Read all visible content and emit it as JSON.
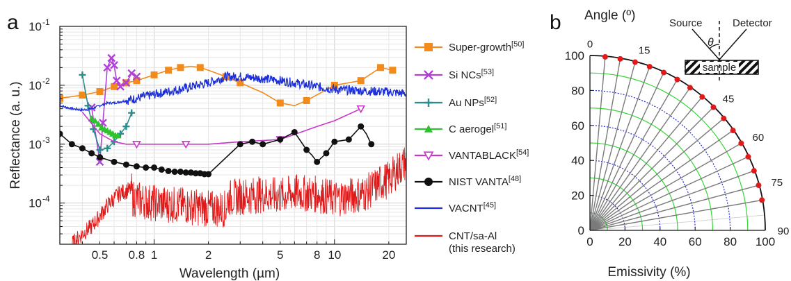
{
  "panels": {
    "a": "a",
    "b": "b"
  },
  "chart_data": [
    {
      "type": "line",
      "panel": "a",
      "xlabel": "Wavelength (µm)",
      "ylabel": "Reflectance (a. u.)",
      "xscale": "log",
      "yscale": "log",
      "xlim": [
        0.3,
        25
      ],
      "ylim": [
        2e-05,
        0.1
      ],
      "grid": true,
      "legend_position": "right",
      "x_ticks": [
        {
          "value": 0.5,
          "label": "0.5"
        },
        {
          "value": 0.8,
          "label": "0.8"
        },
        {
          "value": 1,
          "label": "1"
        },
        {
          "value": 2,
          "label": "2"
        },
        {
          "value": 5,
          "label": "5"
        },
        {
          "value": 8,
          "label": "8"
        },
        {
          "value": 10,
          "label": "10"
        },
        {
          "value": 20,
          "label": "20"
        }
      ],
      "y_ticks": [
        {
          "value": 0.1,
          "base": "10",
          "exp": "-1"
        },
        {
          "value": 0.01,
          "base": "10",
          "exp": "-2"
        },
        {
          "value": 0.001,
          "base": "10",
          "exp": "-3"
        },
        {
          "value": 0.0001,
          "base": "10",
          "exp": "-4"
        }
      ],
      "series": [
        {
          "name": "Super-growth",
          "ref": "[50]",
          "color": "#f28a1c",
          "marker": "square",
          "x": [
            0.3,
            0.4,
            0.5,
            0.6,
            0.7,
            0.8,
            1.0,
            1.2,
            1.4,
            1.6,
            1.8,
            2.0,
            2.5,
            3.0,
            4.0,
            5.0,
            6.0,
            7.0,
            10.0,
            14.0,
            18.0,
            21.0
          ],
          "y": [
            0.006,
            0.0068,
            0.0078,
            0.0095,
            0.011,
            0.012,
            0.015,
            0.018,
            0.02,
            0.021,
            0.02,
            0.018,
            0.014,
            0.011,
            0.0075,
            0.005,
            0.0045,
            0.0055,
            0.01,
            0.012,
            0.02,
            0.018
          ],
          "markers_at": [
            0.3,
            0.4,
            0.5,
            0.6,
            0.7,
            0.8,
            1.0,
            1.2,
            1.4,
            1.8,
            2.5,
            3.0,
            5.0,
            7.0,
            10.0,
            14.0,
            18.0,
            21.0
          ]
        },
        {
          "name": "Si NCs",
          "ref": "[53]",
          "color": "#b040d8",
          "marker": "x",
          "x": [
            0.45,
            0.5,
            0.52,
            0.55,
            0.58,
            0.6,
            0.62,
            0.65,
            0.7,
            0.75,
            0.8
          ],
          "y": [
            0.0042,
            0.0005,
            0.0023,
            0.02,
            0.029,
            0.022,
            0.012,
            0.0095,
            0.011,
            0.016,
            0.014
          ],
          "markers_at": [
            0.45,
            0.5,
            0.52,
            0.55,
            0.58,
            0.6,
            0.62,
            0.65,
            0.7,
            0.75,
            0.8
          ]
        },
        {
          "name": "Au NPs",
          "ref": "[52]",
          "color": "#2a8d8d",
          "marker": "plus",
          "x": [
            0.4,
            0.43,
            0.46,
            0.5,
            0.55,
            0.6,
            0.65,
            0.7,
            0.75
          ],
          "y": [
            0.015,
            0.0045,
            0.0018,
            0.0008,
            0.00085,
            0.0011,
            0.0015,
            0.002,
            0.0034
          ],
          "markers_at": [
            0.4,
            0.43,
            0.46,
            0.5,
            0.55,
            0.6,
            0.65,
            0.7,
            0.75
          ]
        },
        {
          "name": "C aerogel",
          "ref": "[51]",
          "color": "#2fc22f",
          "marker": "triangle",
          "x": [
            0.45,
            0.47,
            0.49,
            0.51,
            0.53,
            0.55,
            0.57,
            0.59,
            0.61,
            0.63
          ],
          "y": [
            0.0027,
            0.0025,
            0.0022,
            0.0019,
            0.0018,
            0.0017,
            0.0016,
            0.0015,
            0.0014,
            0.0014
          ],
          "markers_at": [
            0.45,
            0.47,
            0.49,
            0.51,
            0.53,
            0.55,
            0.57,
            0.59,
            0.61,
            0.63
          ]
        },
        {
          "name": "VANTABLACK",
          "ref": "[54]",
          "color": "#c838c8",
          "marker": "triangle-down",
          "x": [
            0.4,
            0.5,
            0.6,
            0.7,
            0.8,
            1.5,
            2.0,
            3.0,
            5.0,
            8.0,
            10.0,
            14.0
          ],
          "y": [
            0.0035,
            0.0015,
            0.0011,
            0.001,
            0.001,
            0.001,
            0.001,
            0.0011,
            0.0012,
            0.002,
            0.0025,
            0.004
          ],
          "markers_at": [
            0.8,
            1.5,
            5.0,
            14.0
          ]
        },
        {
          "name": "NIST VANTA",
          "ref": "[48]",
          "color": "#111111",
          "marker": "circle",
          "x": [
            0.3,
            0.35,
            0.4,
            0.45,
            0.5,
            0.6,
            0.7,
            0.8,
            0.9,
            1.0,
            1.1,
            1.2,
            1.3,
            1.4,
            1.5,
            1.6,
            1.7,
            1.8,
            1.9,
            2.0,
            3.0,
            3.5,
            4.0,
            5.0,
            6.0,
            7.0,
            7.5,
            8.0,
            9.0,
            10.0,
            12.0,
            14.0,
            15.0,
            16.0
          ],
          "y": [
            0.0015,
            0.001,
            0.00085,
            0.0007,
            0.0006,
            0.0005,
            0.00045,
            0.00042,
            0.0004,
            0.0004,
            0.00037,
            0.00035,
            0.00034,
            0.00034,
            0.00033,
            0.00033,
            0.00032,
            0.00032,
            0.00031,
            0.00031,
            0.001,
            0.0011,
            0.001,
            0.0012,
            0.0016,
            0.0008,
            0.00065,
            0.0005,
            0.0007,
            0.0011,
            0.0012,
            0.002,
            0.0015,
            0.001
          ],
          "markers_at": [
            0.3,
            0.35,
            0.4,
            0.45,
            0.5,
            0.6,
            0.7,
            0.8,
            0.9,
            1.0,
            1.1,
            1.2,
            1.3,
            1.4,
            1.5,
            1.6,
            1.7,
            1.8,
            1.9,
            2.0,
            3.0,
            3.5,
            4.0,
            5.0,
            6.0,
            7.0,
            8.0,
            9.0,
            10.0,
            12.0,
            14.0,
            16.0
          ]
        },
        {
          "name": "VACNT",
          "ref": "[45]",
          "color": "#1c2fd8",
          "marker": "none",
          "x": [
            0.3,
            0.35,
            0.4,
            0.45,
            0.5,
            0.55,
            0.6,
            0.7,
            0.8,
            1.0,
            1.5,
            2.0,
            2.5,
            3.0,
            4.0,
            5.0,
            6.0,
            8.0,
            10.0,
            15.0,
            20.0,
            25.0
          ],
          "y": [
            0.0045,
            0.004,
            0.0038,
            0.004,
            0.0045,
            0.005,
            0.005,
            0.0055,
            0.006,
            0.007,
            0.009,
            0.011,
            0.014,
            0.014,
            0.013,
            0.012,
            0.011,
            0.0095,
            0.0085,
            0.008,
            0.0077,
            0.0072
          ]
        },
        {
          "name": "CNT/sa-Al",
          "note": "(this research)",
          "color": "#e01a1a",
          "marker": "none",
          "x": [
            0.35,
            0.4,
            0.45,
            0.5,
            0.55,
            0.6,
            0.65,
            0.7,
            0.75,
            0.76,
            1.0,
            1.5,
            2.0,
            2.5,
            2.55,
            3.0,
            4.0,
            5.0,
            6.0,
            8.0,
            10.0,
            12.0,
            15.0,
            18.0,
            20.0,
            22.0,
            25.0
          ],
          "y": [
            2e-05,
            3e-05,
            4e-05,
            6e-05,
            9e-05,
            0.00012,
            0.00015,
            0.00016,
            0.00017,
            0.00012,
            0.0001,
            9e-05,
            8e-05,
            8e-05,
            0.00012,
            0.00013,
            0.00014,
            0.00013,
            0.00015,
            0.00014,
            0.00012,
            0.00013,
            0.00015,
            0.00022,
            0.00025,
            0.00035,
            0.0005
          ]
        }
      ]
    },
    {
      "type": "polar",
      "panel": "b",
      "title": "Angle (º)",
      "xlabel": "Emissivity (%)",
      "radial_ticks": [
        0,
        20,
        40,
        60,
        80,
        100
      ],
      "angle_ticks": [
        0,
        15,
        30,
        45,
        60,
        75,
        90
      ],
      "angles": [
        5,
        10,
        15,
        20,
        25,
        30,
        35,
        40,
        45,
        50,
        55,
        60,
        65,
        70,
        75,
        80
      ],
      "emissivity": [
        99.6,
        99.6,
        99.6,
        99.6,
        99.6,
        99.6,
        99.6,
        99.6,
        99.6,
        99.6,
        99.6,
        99.6,
        99.6,
        99.6,
        99.6,
        99.6
      ],
      "circle_colors": {
        "green": "#31d831",
        "blue": "#1d25d0",
        "gray": "#7a7a7a",
        "red": "#e01a1a"
      }
    }
  ],
  "inset": {
    "source": "Source",
    "detector": "Detector",
    "theta": "θ",
    "sample": "sample"
  }
}
